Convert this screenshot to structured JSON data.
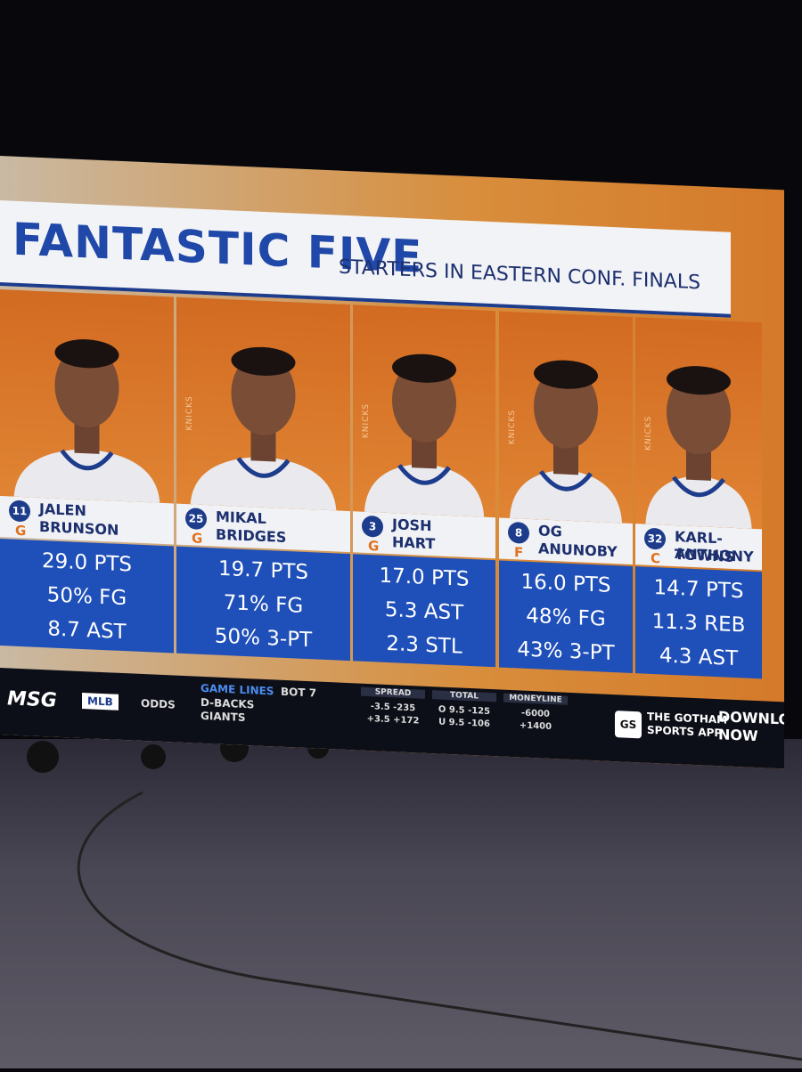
{
  "header": {
    "title": "FANTASTIC FIVE",
    "subtitle": "STARTERS IN EASTERN CONF. FINALS"
  },
  "jersey_text": "KNICKS",
  "players": [
    {
      "number": "11",
      "position": "G",
      "first_name": "JALEN",
      "last_name": "BRUNSON",
      "stats": [
        "29.0 PTS",
        "50% FG",
        "8.7 AST"
      ]
    },
    {
      "number": "25",
      "position": "G",
      "first_name": "MIKAL",
      "last_name": "BRIDGES",
      "stats": [
        "19.7 PTS",
        "71% FG",
        "50% 3-PT"
      ]
    },
    {
      "number": "3",
      "position": "G",
      "first_name": "JOSH",
      "last_name": "HART",
      "stats": [
        "17.0 PTS",
        "5.3 AST",
        "2.3 STL"
      ]
    },
    {
      "number": "8",
      "position": "F",
      "first_name": "OG",
      "last_name": "ANUNOBY",
      "stats": [
        "16.0 PTS",
        "48% FG",
        "43% 3-PT"
      ]
    },
    {
      "number": "32",
      "position": "C",
      "first_name": "KARL-ANTHONY",
      "last_name": "TOWNS",
      "stats": [
        "14.7 PTS",
        "11.3 REB",
        "4.3 AST"
      ]
    }
  ],
  "ticker": {
    "network": "MSG",
    "league": "MLB",
    "section": "ODDS",
    "label": "GAME LINES",
    "inning": "BOT 7",
    "teams": [
      "D-BACKS",
      "GIANTS"
    ],
    "columns": [
      {
        "title": "SPREAD",
        "rows": [
          "-3.5 -235",
          "+3.5 +172"
        ]
      },
      {
        "title": "TOTAL",
        "rows": [
          "O 9.5 -125",
          "U 9.5 -106"
        ]
      },
      {
        "title": "MONEYLINE",
        "rows": [
          "-6000",
          "+1400"
        ]
      }
    ],
    "app_logo": "GS",
    "app_name": [
      "THE GOTHAM",
      "SPORTS APP"
    ],
    "cta": [
      "DOWNLOAD",
      "NOW"
    ]
  }
}
